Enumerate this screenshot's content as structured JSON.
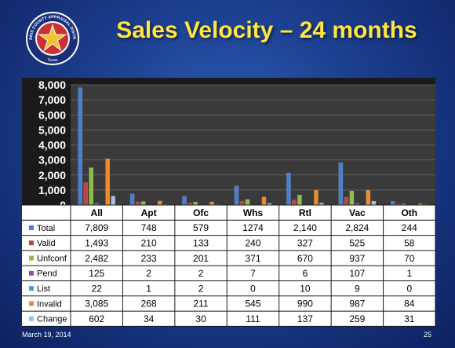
{
  "slide": {
    "title": "Sales Velocity – 24 months",
    "date": "March 19, 2014",
    "page_number": "25",
    "logo_text": "HARRIS COUNTY APPRAISAL DISTRICT",
    "logo_state": "Texas"
  },
  "colors": {
    "Total": "#4a7fd0",
    "Valid": "#c0453f",
    "Unfconf": "#8fbd4a",
    "Pend": "#7a5aa8",
    "List": "#3ca7c8",
    "Invalid": "#f08a2a",
    "Change": "#a9bde0"
  },
  "chart_data": {
    "type": "bar",
    "categories": [
      "All",
      "Apt",
      "Ofc",
      "Whs",
      "Rtl",
      "Vac",
      "Oth"
    ],
    "series": [
      {
        "name": "Total",
        "values": [
          7809,
          748,
          579,
          1274,
          2140,
          2824,
          244
        ],
        "labels": [
          "7,809",
          "748",
          "579",
          "1274",
          "2,140",
          "2,824",
          "244"
        ]
      },
      {
        "name": "Valid",
        "values": [
          1493,
          210,
          133,
          240,
          327,
          525,
          58
        ],
        "labels": [
          "1,493",
          "210",
          "133",
          "240",
          "327",
          "525",
          "58"
        ]
      },
      {
        "name": "Unfconf",
        "values": [
          2482,
          233,
          201,
          371,
          670,
          937,
          70
        ],
        "labels": [
          "2,482",
          "233",
          "201",
          "371",
          "670",
          "937",
          "70"
        ]
      },
      {
        "name": "Pend",
        "values": [
          125,
          2,
          2,
          7,
          6,
          107,
          1
        ],
        "labels": [
          "125",
          "2",
          "2",
          "7",
          "6",
          "107",
          "1"
        ]
      },
      {
        "name": "List",
        "values": [
          22,
          1,
          2,
          0,
          10,
          9,
          0
        ],
        "labels": [
          "22",
          "1",
          "2",
          "0",
          "10",
          "9",
          "0"
        ]
      },
      {
        "name": "Invalid",
        "values": [
          3085,
          268,
          211,
          545,
          990,
          987,
          84
        ],
        "labels": [
          "3,085",
          "268",
          "211",
          "545",
          "990",
          "987",
          "84"
        ]
      },
      {
        "name": "Change",
        "values": [
          602,
          34,
          30,
          111,
          137,
          259,
          31
        ],
        "labels": [
          "602",
          "34",
          "30",
          "111",
          "137",
          "259",
          "31"
        ]
      }
    ],
    "ylim": [
      0,
      8000
    ],
    "yticks": [
      "0",
      "1,000",
      "2,000",
      "3,000",
      "4,000",
      "5,000",
      "6,000",
      "7,000",
      "8,000"
    ],
    "grid": true,
    "legend": "data-table"
  }
}
